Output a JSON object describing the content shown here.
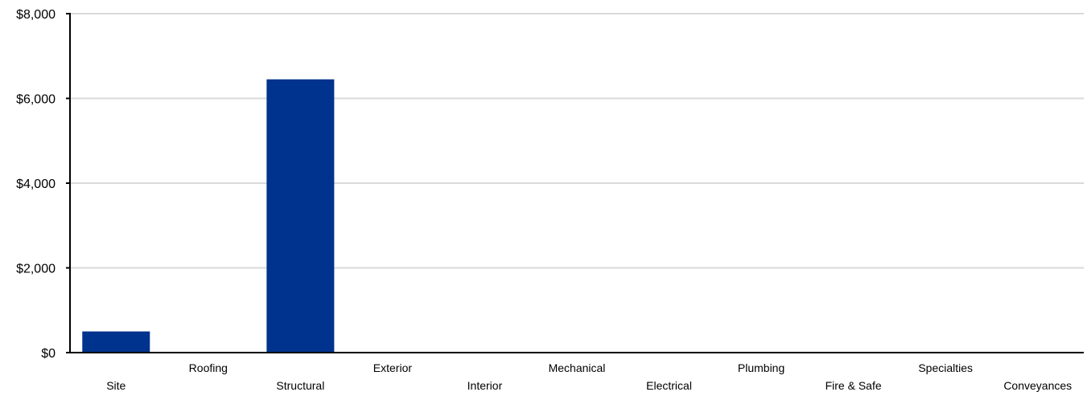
{
  "chart_data": {
    "type": "bar",
    "title": "",
    "xlabel": "",
    "ylabel": "",
    "categories": [
      "Site",
      "Roofing",
      "Structural",
      "Exterior",
      "Interior",
      "Mechanical",
      "Electrical",
      "Plumbing",
      "Fire & Safe",
      "Specialties",
      "Conveyances"
    ],
    "values": [
      500,
      0,
      6450,
      0,
      0,
      0,
      0,
      0,
      0,
      0,
      0
    ],
    "ylim": [
      0,
      8000
    ],
    "yticks": [
      0,
      2000,
      4000,
      6000,
      8000
    ],
    "ytick_labels": [
      "$0",
      "$2,000",
      "$4,000",
      "$6,000",
      "$8,000"
    ],
    "grid": true,
    "legend": "none",
    "colors": {
      "bar": "#00338d",
      "grid": "#d9d9d9",
      "axis": "#000000"
    }
  }
}
